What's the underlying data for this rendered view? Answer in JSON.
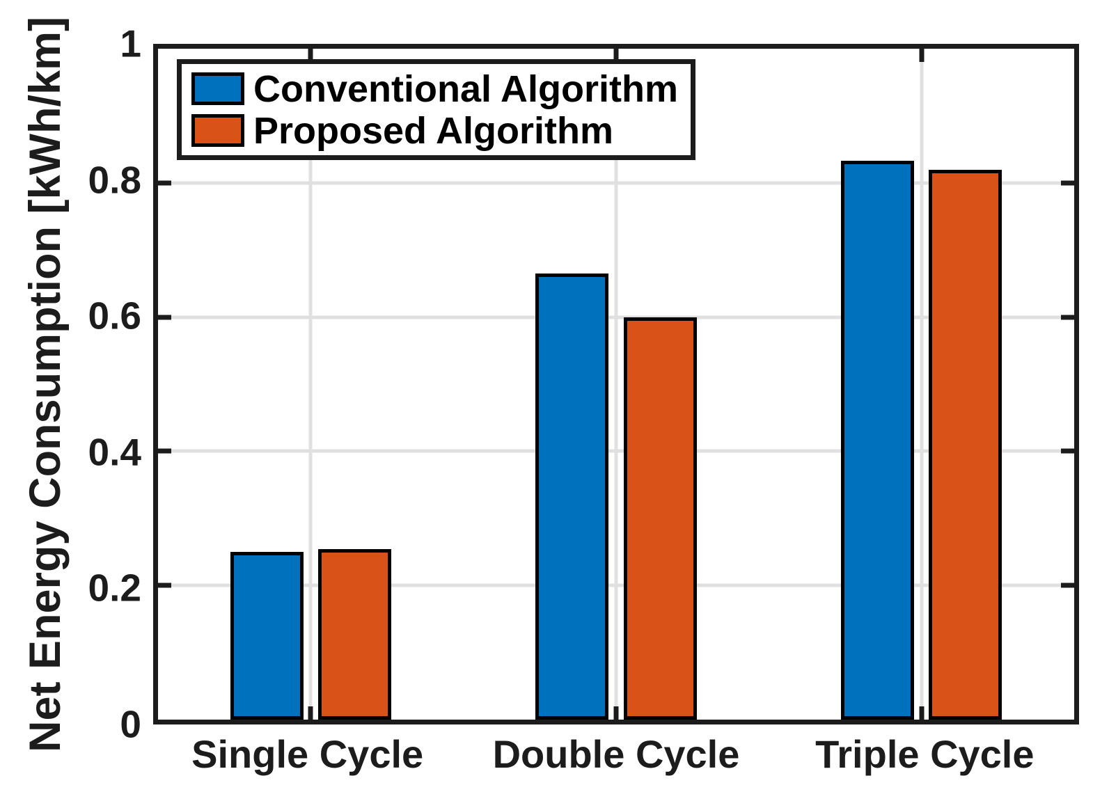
{
  "chart_data": {
    "type": "bar",
    "title": "",
    "xlabel": "",
    "ylabel": "Net Energy Consumption [kWh/km]",
    "categories": [
      "Single Cycle",
      "Double Cycle",
      "Triple Cycle"
    ],
    "series": [
      {
        "name": "Conventional Algorithm",
        "color": "#0072BD",
        "values": [
          0.25,
          0.665,
          0.833
        ]
      },
      {
        "name": "Proposed Algorithm",
        "color": "#D95319",
        "values": [
          0.254,
          0.6,
          0.82
        ]
      }
    ],
    "ylim": [
      0,
      1
    ],
    "yticks": [
      0,
      0.2,
      0.4,
      0.6,
      0.8,
      1
    ],
    "ytick_labels": [
      "0",
      "0.2",
      "0.4",
      "0.6",
      "0.8",
      "1"
    ],
    "grid": true,
    "legend_position": "top-left",
    "bar_edge_color": "#000000",
    "axis_color": "#1c1c1c",
    "grid_color": "#e0e0e0"
  }
}
